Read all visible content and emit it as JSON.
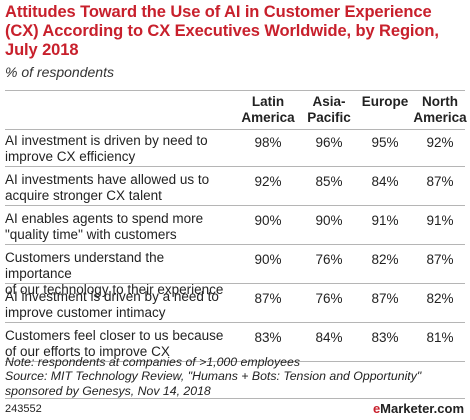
{
  "title": "Attitudes Toward the Use of AI in Customer Experience (CX) According to CX Executives Worldwide, by Region, July 2018",
  "subtitle": "% of respondents",
  "note_lines": [
    "Note: respondents at companies of >1,000 employees",
    "Source: MIT Technology Review, \"Humans + Bots: Tension and Opportunity\"",
    "sponsored by Genesys, Nov 14, 2018"
  ],
  "footer": {
    "chart_id": "243552",
    "brand_e": "e",
    "brand_rest": "Marketer",
    "brand_suffix": ".com"
  },
  "chart_data": {
    "type": "table",
    "columns": [
      [
        "Latin",
        "America"
      ],
      [
        "Asia-",
        "Pacific"
      ],
      [
        "Europe",
        ""
      ],
      [
        "North",
        "America"
      ]
    ],
    "rows": [
      {
        "label": [
          "AI investment is driven by need to",
          "improve CX efficiency"
        ],
        "values": [
          "98%",
          "96%",
          "95%",
          "92%"
        ]
      },
      {
        "label": [
          "AI investments have allowed us to",
          "acquire stronger CX talent"
        ],
        "values": [
          "92%",
          "85%",
          "84%",
          "87%"
        ]
      },
      {
        "label": [
          "AI enables agents to spend more",
          "\"quality time\" with customers"
        ],
        "values": [
          "90%",
          "90%",
          "91%",
          "91%"
        ]
      },
      {
        "label": [
          "Customers understand the importance",
          "of our technology to their experience"
        ],
        "values": [
          "90%",
          "76%",
          "82%",
          "87%"
        ]
      },
      {
        "label": [
          "AI investment is driven by a need to",
          "improve customer intimacy"
        ],
        "values": [
          "87%",
          "76%",
          "87%",
          "82%"
        ]
      },
      {
        "label": [
          "Customers feel closer to us because",
          "of our efforts to improve CX"
        ],
        "values": [
          "83%",
          "84%",
          "83%",
          "81%"
        ]
      }
    ]
  }
}
